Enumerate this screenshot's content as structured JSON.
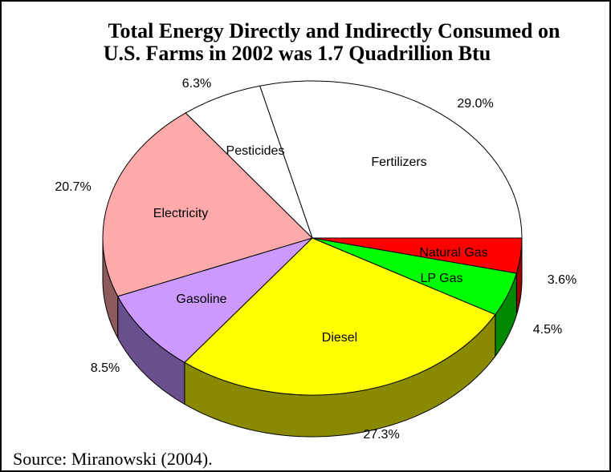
{
  "chart_data": {
    "type": "pie",
    "title_line1": "Total Energy Directly and Indirectly Consumed on",
    "title_line2": "U.S. Farms in 2002 was 1.7 Quadrillion Btu",
    "slices": [
      {
        "label": "Fertilizers",
        "value": 29.0,
        "pct_label": "29.0%",
        "color": "#ffffff",
        "side": "#d8d8d8"
      },
      {
        "label": "Natural Gas",
        "value": 3.6,
        "pct_label": "3.6%",
        "color": "#ff0000",
        "side": "#9a0000"
      },
      {
        "label": "LP Gas",
        "value": 4.5,
        "pct_label": "4.5%",
        "color": "#00ff00",
        "side": "#008800"
      },
      {
        "label": "Diesel",
        "value": 27.3,
        "pct_label": "27.3%",
        "color": "#ffff00",
        "side": "#8a8a00"
      },
      {
        "label": "Gasoline",
        "value": 8.5,
        "pct_label": "8.5%",
        "color": "#cc99ff",
        "side": "#6a4f8f"
      },
      {
        "label": "Electricity",
        "value": 20.7,
        "pct_label": "20.7%",
        "color": "#ffaaaa",
        "side": "#8c5a5a"
      },
      {
        "label": "Pesticides",
        "value": 6.3,
        "pct_label": "6.3%",
        "color": "#ffffff",
        "side": "#d8d8d8"
      }
    ]
  },
  "source": "Source: Miranowski (2004)."
}
